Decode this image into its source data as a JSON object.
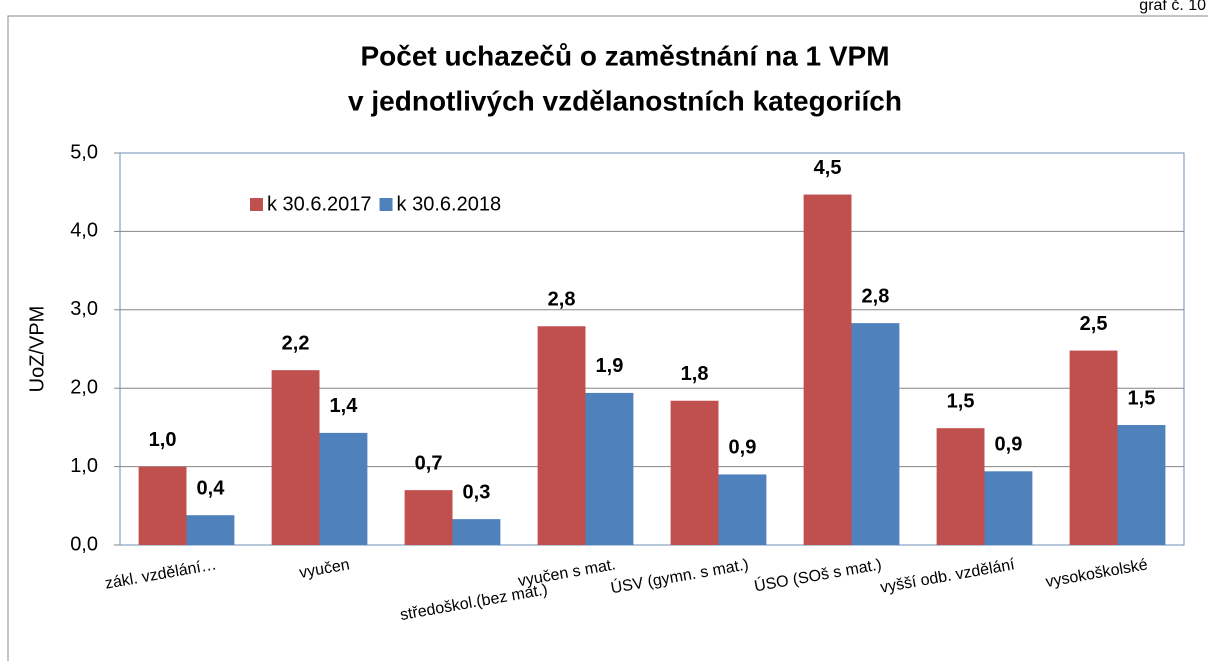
{
  "chart_data": {
    "type": "bar",
    "corner_label": "graf č. 10",
    "title": [
      "Počet uchazečů o zaměstnání na 1 VPM",
      "v jednotlivých vzdělanostních kategoriích"
    ],
    "y_label": "UoZ/VPM",
    "categories": [
      "zákl. vzdělání…",
      "vyučen",
      "středoškol.(bez mat.)",
      "vyučen s mat.",
      "ÚSV (gymn. s mat.)",
      "ÚSO (SOš s mat.)",
      "vyšší odb. vzdělání",
      "vysokoškolské"
    ],
    "series": [
      {
        "name": "k 30.6.2017",
        "color": "#c0504d",
        "values": [
          1.0,
          2.23,
          0.7,
          2.79,
          1.84,
          4.47,
          1.49,
          2.48
        ],
        "value_labels": [
          "1,0",
          "2,2",
          "0,7",
          "2,8",
          "1,8",
          "4,5",
          "1,5",
          "2,5"
        ]
      },
      {
        "name": "k 30.6.2018",
        "color": "#4f81bd",
        "values": [
          0.38,
          1.43,
          0.33,
          1.94,
          0.9,
          2.83,
          0.94,
          1.53
        ],
        "value_labels": [
          "0,4",
          "1,4",
          "0,3",
          "1,9",
          "0,9",
          "2,8",
          "0,9",
          "1,5"
        ]
      }
    ],
    "ylim": [
      0,
      5
    ],
    "yticks": [
      {
        "value": 0,
        "label": "0,0"
      },
      {
        "value": 1,
        "label": "1,0"
      },
      {
        "value": 2,
        "label": "2,0"
      },
      {
        "value": 3,
        "label": "3,0"
      },
      {
        "value": 4,
        "label": "4,0"
      },
      {
        "value": 5,
        "label": "5,0"
      }
    ],
    "grid": true,
    "legend": "top-left"
  }
}
